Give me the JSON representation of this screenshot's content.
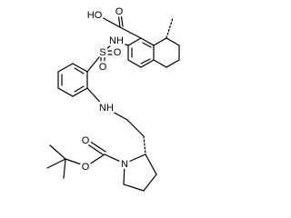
{
  "labels": [
    "HO",
    "O",
    "NH",
    "S",
    "O",
    "O",
    "NH",
    "O",
    "O",
    "N"
  ]
}
